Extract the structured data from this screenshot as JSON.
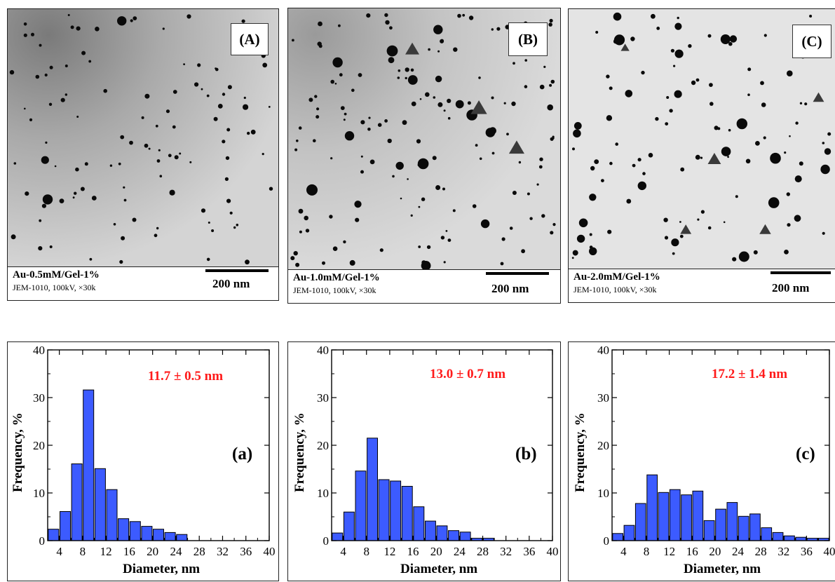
{
  "tem_panels": [
    {
      "label": "(A)",
      "title": "Au-0.5mM/Gel-1%",
      "instrument": "JEM-1010, 100kV, ×30k",
      "scale": "200 nm"
    },
    {
      "label": "(B)",
      "title": "Au-1.0mM/Gel-1%",
      "instrument": "JEM-1010, 100kV, ×30k",
      "scale": "200 nm"
    },
    {
      "label": "(C)",
      "title": "Au-2.0mM/Gel-1%",
      "instrument": "JEM-1010, 100kV, ×30k",
      "scale": "200 nm"
    }
  ],
  "colors": {
    "bar": "#3c5bff",
    "bar_edge": "#000000",
    "mean_text": "#ff1a1a"
  },
  "chart_data": [
    {
      "type": "bar",
      "panel": "(a)",
      "annotation": "11.7 ± 0.5 nm",
      "xlabel": "Diameter, nm",
      "ylabel": "Frequency, %",
      "xlim": [
        2,
        40
      ],
      "ylim": [
        0,
        40
      ],
      "xticks": [
        4,
        8,
        12,
        16,
        20,
        24,
        28,
        32,
        36,
        40
      ],
      "yticks": [
        0,
        10,
        20,
        30,
        40
      ],
      "x": [
        3,
        5,
        7,
        9,
        11,
        13,
        15,
        17,
        19,
        21,
        23,
        25
      ],
      "values": [
        2.4,
        6.1,
        16.1,
        31.6,
        15.1,
        10.7,
        4.6,
        4.0,
        3.0,
        2.4,
        1.7,
        1.3
      ]
    },
    {
      "type": "bar",
      "panel": "(b)",
      "annotation": "13.0 ± 0.7 nm",
      "xlabel": "Diameter, nm",
      "ylabel": "Frequency, %",
      "xlim": [
        2,
        40
      ],
      "ylim": [
        0,
        40
      ],
      "xticks": [
        4,
        8,
        12,
        16,
        20,
        24,
        28,
        32,
        36,
        40
      ],
      "yticks": [
        0,
        10,
        20,
        30,
        40
      ],
      "x": [
        3,
        5,
        7,
        9,
        11,
        13,
        15,
        17,
        19,
        21,
        23,
        25,
        27,
        29
      ],
      "values": [
        1.6,
        6.0,
        14.6,
        21.5,
        12.8,
        12.5,
        11.4,
        7.1,
        4.1,
        3.1,
        2.1,
        1.8,
        0.5,
        0.5
      ]
    },
    {
      "type": "bar",
      "panel": "(c)",
      "annotation": "17.2 ± 1.4 nm",
      "xlabel": "Diameter, nm",
      "ylabel": "Frequency, %",
      "xlim": [
        2,
        40
      ],
      "ylim": [
        0,
        40
      ],
      "xticks": [
        4,
        8,
        12,
        16,
        20,
        24,
        28,
        32,
        36,
        40
      ],
      "yticks": [
        0,
        10,
        20,
        30,
        40
      ],
      "x": [
        3,
        5,
        7,
        9,
        11,
        13,
        15,
        17,
        19,
        21,
        23,
        25,
        27,
        29,
        31,
        33,
        35,
        37,
        39
      ],
      "values": [
        1.5,
        3.2,
        7.8,
        13.8,
        10.1,
        10.7,
        9.6,
        10.4,
        4.2,
        6.6,
        8.0,
        5.1,
        5.6,
        2.7,
        1.7,
        1.0,
        0.7,
        0.5,
        0.5
      ]
    }
  ]
}
